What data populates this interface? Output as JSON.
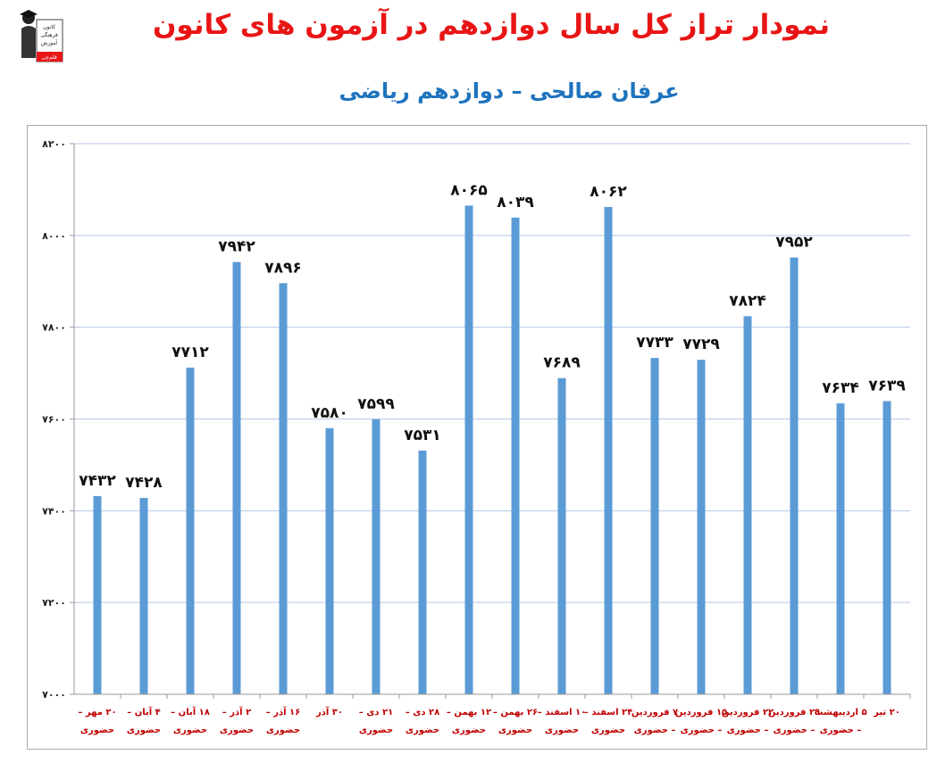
{
  "title": "نمودار تراز کل سال دوازدهم در آزمون های کانون",
  "subtitle": "عرفان صالحی – دوازدهم ریاضی",
  "logo": {
    "icon": "graduate-icon",
    "lines": [
      "کانون",
      "فرهنگی",
      "آموزش",
      "قلم‌چی"
    ]
  },
  "colors": {
    "title": "#e81515",
    "subtitle": "#1e73be",
    "bar": "#5b9bd5",
    "category_labels": "#c00000",
    "grid": "#b4c7e7"
  },
  "chart_data": {
    "type": "bar",
    "title": "",
    "xlabel": "",
    "ylabel": "",
    "ylim": [
      7000,
      8200
    ],
    "grid": true,
    "yticks": [
      7000,
      7200,
      7400,
      7600,
      7800,
      8000,
      8200
    ],
    "ytick_labels": [
      "۷۰۰۰",
      "۷۲۰۰",
      "۷۴۰۰",
      "۷۶۰۰",
      "۷۸۰۰",
      "۸۰۰۰",
      "۸۲۰۰"
    ],
    "categories": [
      [
        "۲۰ مهر –",
        "حضوری"
      ],
      [
        "۴ آبان –",
        "حضوری"
      ],
      [
        "۱۸ آبان –",
        "حضوری"
      ],
      [
        "۲ آذر –",
        "حضوری"
      ],
      [
        "۱۶ آذر –",
        "حضوری"
      ],
      [
        "۳۰ آذر",
        ""
      ],
      [
        "۲۱ دی –",
        "حضوری"
      ],
      [
        "۲۸ دی –",
        "حضوری"
      ],
      [
        "۱۲ بهمن –",
        "حضوری"
      ],
      [
        "۲۶ بهمن –",
        "حضوری"
      ],
      [
        "۱۰ اسفند –",
        "حضوری"
      ],
      [
        "۲۴ اسفند –",
        "حضوری"
      ],
      [
        "۷ فروردین",
        "– حضوری"
      ],
      [
        "۱۵ فروردین",
        "– حضوری"
      ],
      [
        "۲۲ فروردین",
        "– حضوری"
      ],
      [
        "۲۹ فروردین",
        "– حضوری"
      ],
      [
        "۵ اردیبهشت",
        "– حضوری"
      ],
      [
        "۲۰ تیر",
        ""
      ]
    ],
    "values": [
      7432,
      7428,
      7712,
      7942,
      7896,
      7580,
      7599,
      7531,
      8065,
      8039,
      7689,
      8062,
      7733,
      7729,
      7824,
      7952,
      7634,
      7639
    ],
    "value_labels": [
      "۷۴۳۲",
      "۷۴۲۸",
      "۷۷۱۲",
      "۷۹۴۲",
      "۷۸۹۶",
      "۷۵۸۰",
      "۷۵۹۹",
      "۷۵۳۱",
      "۸۰۶۵",
      "۸۰۳۹",
      "۷۶۸۹",
      "۸۰۶۲",
      "۷۷۳۳",
      "۷۷۲۹",
      "۷۸۲۴",
      "۷۹۵۲",
      "۷۶۳۴",
      "۷۶۳۹"
    ]
  }
}
